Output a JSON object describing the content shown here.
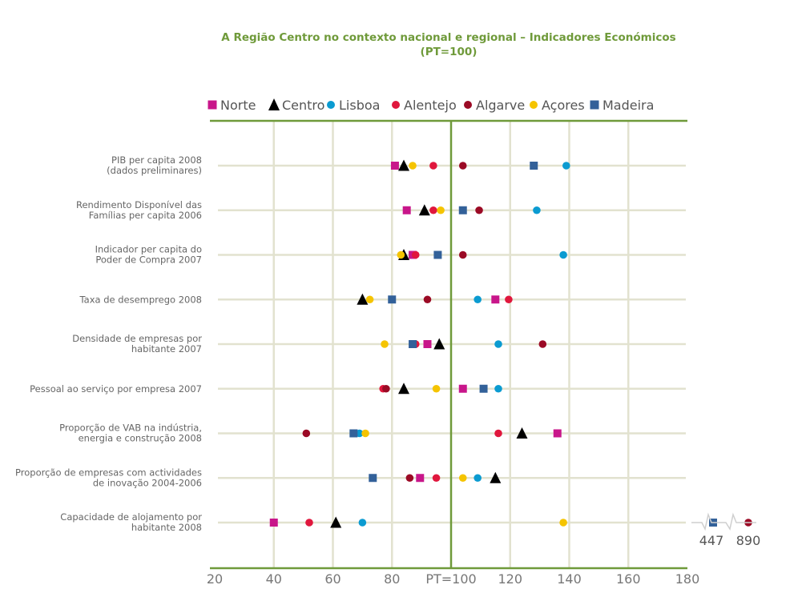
{
  "chart_data": {
    "type": "scatter",
    "title": "A Região Centro no contexto nacional e regional – Indicadores Económicos",
    "subtitle": "(PT=100)",
    "xlim": [
      20,
      180
    ],
    "xticks": [
      "20",
      "40",
      "60",
      "80",
      "PT=100",
      "120",
      "140",
      "160",
      "180"
    ],
    "reference_value": 100,
    "grid": true,
    "legend_position": "top",
    "categories": [
      [
        "PIB per capita 2008",
        "(dados preliminares)"
      ],
      [
        "Rendimento Disponível das",
        "Famílias per capita 2006"
      ],
      [
        "Indicador per capita do",
        "Poder de Compra 2007"
      ],
      [
        "Taxa de desemprego 2008"
      ],
      [
        "Densidade de empresas por",
        "habitante 2007"
      ],
      [
        "Pessoal ao serviço por empresa 2007"
      ],
      [
        "Proporção de VAB na indústria,",
        "energia e construção 2008"
      ],
      [
        "Proporção de empresas com actividades",
        "de inovação 2004-2006"
      ],
      [
        "Capacidade de alojamento por",
        "habitante 2008"
      ]
    ],
    "series": [
      {
        "name": "Norte",
        "color": "#c8168a",
        "marker": "square",
        "values": [
          81,
          85,
          87,
          115,
          92,
          104,
          136,
          89.5,
          40
        ]
      },
      {
        "name": "Centro",
        "color": "#000000",
        "marker": "triangle",
        "values": [
          84,
          91,
          84,
          70,
          96,
          84,
          124,
          115,
          61
        ]
      },
      {
        "name": "Lisboa",
        "color": "#0b9bd1",
        "marker": "circle",
        "values": [
          139,
          129,
          138,
          109,
          116,
          116,
          69,
          109,
          70
        ]
      },
      {
        "name": "Alentejo",
        "color": "#e0173d",
        "marker": "circle",
        "values": [
          94,
          94,
          88,
          119.5,
          88,
          77,
          116,
          95,
          52
        ]
      },
      {
        "name": "Algarve",
        "color": "#9b0a25",
        "marker": "circle",
        "values": [
          104,
          109.5,
          104,
          92,
          131,
          78,
          51,
          86,
          890
        ]
      },
      {
        "name": "Açores",
        "color": "#f5c400",
        "marker": "circle",
        "values": [
          87,
          96.5,
          83,
          72.5,
          77.5,
          95,
          71,
          104,
          138
        ]
      },
      {
        "name": "Madeira",
        "color": "#336199",
        "marker": "square",
        "values": [
          128,
          104,
          95.5,
          80,
          87,
          111,
          67,
          73.5,
          447
        ]
      }
    ],
    "outlier_labels": [
      "447",
      "890"
    ]
  }
}
